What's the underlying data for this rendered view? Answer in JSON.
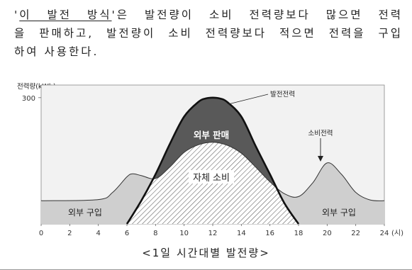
{
  "paragraph": {
    "line1_open": "'",
    "line1_term": "이 발전 방식",
    "line1_rest": "'은 발전량이 소비 전력량보다 많으면 전력",
    "line2": "을 판매하고, 발전량이 소비 전력량보다 적으면 전력을 구입",
    "line3": "하여 사용한다."
  },
  "chart_data": {
    "type": "area",
    "ylabel": "전력량(kWh)",
    "xlabel": "(시)",
    "x_ticks": [
      0,
      2,
      4,
      6,
      8,
      10,
      12,
      14,
      16,
      18,
      20,
      22,
      24
    ],
    "y_ticks": [
      300
    ],
    "xlim": [
      0,
      24
    ],
    "ylim": [
      0,
      330
    ],
    "series": [
      {
        "name": "소비전력",
        "x": [
          0,
          4,
          5,
          6,
          6.4,
          7,
          8,
          9,
          10,
          11,
          12,
          13,
          14,
          15,
          16,
          17,
          18,
          19,
          20,
          21,
          22,
          23,
          24
        ],
        "y": [
          55,
          58,
          75,
          112,
          119,
          115,
          108,
          135,
          170,
          188,
          194,
          187,
          168,
          135,
          100,
          72,
          65,
          98,
          145,
          118,
          75,
          57,
          55
        ]
      },
      {
        "name": "발전전력",
        "x": [
          6,
          7,
          8,
          9,
          10,
          11,
          11.5,
          12,
          12.5,
          13,
          14,
          15,
          16,
          17,
          18
        ],
        "y": [
          0,
          55,
          118,
          190,
          255,
          290,
          298,
          300,
          298,
          290,
          255,
          185,
          118,
          50,
          0
        ]
      }
    ],
    "annotations": [
      "외부 판매",
      "자체 소비",
      "외부 구입",
      "외부 구입"
    ],
    "caption": "<1일 시간대별 발전량>"
  },
  "colors": {
    "grid_background": "#f2f2f2",
    "purchase_fill": "#cfcfcf",
    "sell_fill": "#595959",
    "hatch": "#5a5a5a",
    "curve_stroke": "#111111"
  }
}
